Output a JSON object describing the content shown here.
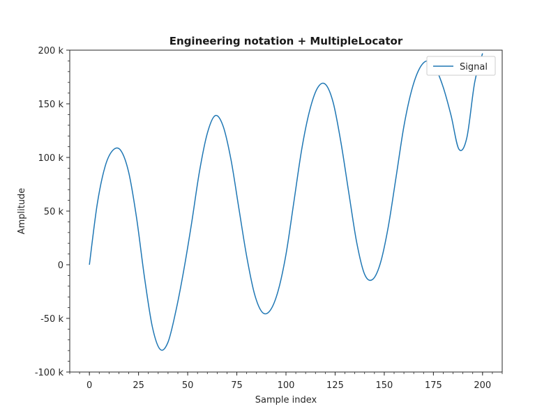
{
  "chart_data": {
    "type": "line",
    "title": "Engineering notation + MultipleLocator",
    "xlabel": "Sample index",
    "ylabel": "Amplitude",
    "xlim": [
      -10,
      210
    ],
    "ylim": [
      -100000,
      200000
    ],
    "x_ticks": [
      0,
      25,
      50,
      75,
      100,
      125,
      150,
      175,
      200
    ],
    "x_tick_labels": [
      "0",
      "25",
      "50",
      "75",
      "100",
      "125",
      "150",
      "175",
      "200"
    ],
    "y_ticks": [
      -100000,
      -50000,
      0,
      50000,
      100000,
      150000,
      200000
    ],
    "y_tick_labels": [
      "-100 k",
      "-50 k",
      "0",
      "50 k",
      "100 k",
      "150 k",
      "200 k"
    ],
    "x_minor_step": 5,
    "y_minor_step": 10000,
    "grid": false,
    "legend": {
      "position": "top-right",
      "entries": [
        "Signal"
      ]
    },
    "series": [
      {
        "name": "Signal",
        "color": "#1f77b4",
        "x": [
          0,
          4,
          8,
          12,
          16,
          20,
          24,
          28,
          32,
          36,
          40,
          44,
          48,
          52,
          56,
          60,
          64,
          68,
          72,
          76,
          80,
          84,
          88,
          92,
          96,
          100,
          104,
          108,
          112,
          116,
          120,
          124,
          128,
          132,
          136,
          140,
          144,
          148,
          152,
          156,
          160,
          164,
          168,
          172,
          176,
          180,
          184,
          188,
          192,
          196,
          200
        ],
        "values": [
          0,
          56700,
          91700,
          106800,
          106400,
          86000,
          43600,
          -11500,
          -57700,
          -78900,
          -72100,
          -43000,
          -5200,
          38900,
          87000,
          122600,
          139000,
          129300,
          98200,
          53000,
          7900,
          -27300,
          -44400,
          -42500,
          -24400,
          9600,
          58300,
          107500,
          143400,
          164600,
          168300,
          151300,
          113600,
          66600,
          20600,
          -8900,
          -13800,
          1300,
          35000,
          81600,
          129100,
          163000,
          183100,
          190000,
          183400,
          165400,
          139000,
          107700,
          118300,
          170000,
          197000
        ]
      }
    ]
  }
}
